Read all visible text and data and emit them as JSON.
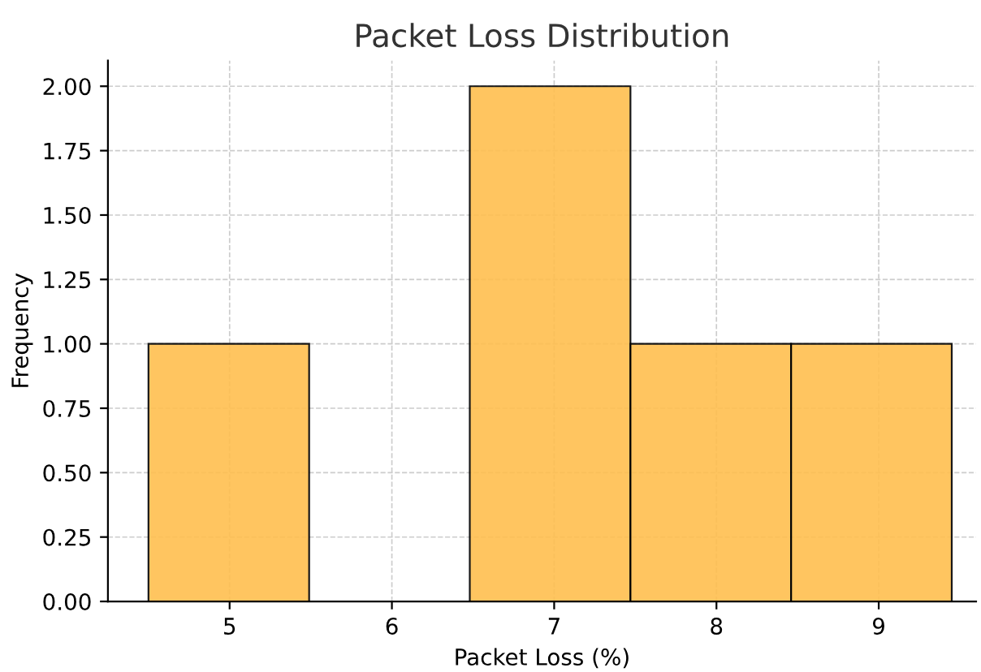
{
  "chart_data": {
    "type": "histogram",
    "title": "Packet Loss Distribution",
    "xlabel": "Packet Loss (%)",
    "ylabel": "Frequency",
    "bins": [
      4.5,
      5.49,
      6.48,
      7.47,
      8.46,
      9.45
    ],
    "values": [
      1,
      0,
      2,
      1,
      1
    ],
    "color": "#ffbf4f",
    "xlim": [
      4.25,
      9.6
    ],
    "xticks": [
      5,
      6,
      7,
      8,
      9
    ],
    "ylim": [
      0,
      2.1
    ],
    "yticks": [
      {
        "value": 0,
        "label": "0.00"
      },
      {
        "value": 0.25,
        "label": "0.25"
      },
      {
        "value": 0.5,
        "label": "0.50"
      },
      {
        "value": 0.75,
        "label": "0.75"
      },
      {
        "value": 1,
        "label": "1.00"
      },
      {
        "value": 1.25,
        "label": "1.25"
      },
      {
        "value": 1.5,
        "label": "1.50"
      },
      {
        "value": 1.75,
        "label": "1.75"
      },
      {
        "value": 2,
        "label": "2.00"
      }
    ],
    "grid": true
  }
}
